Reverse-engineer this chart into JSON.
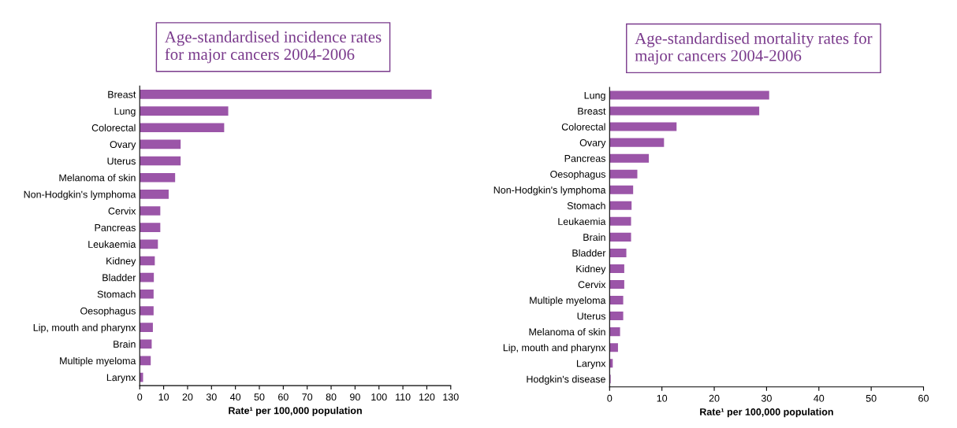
{
  "chart_data": [
    {
      "type": "bar",
      "orientation": "horizontal",
      "title": "Age-standardised incidence rates\nfor major cancers 2004-2006",
      "xlabel": "Rate¹ per 100,000 population",
      "categories": [
        "Breast",
        "Lung",
        "Colorectal",
        "Ovary",
        "Uterus",
        "Melanoma of skin",
        "Non-Hodgkin's lymphoma",
        "Cervix",
        "Pancreas",
        "Leukaemia",
        "Kidney",
        "Bladder",
        "Stomach",
        "Oesophagus",
        "Lip, mouth and pharynx",
        "Brain",
        "Multiple myeloma",
        "Larynx"
      ],
      "values": [
        122,
        37,
        35.3,
        17.1,
        17.1,
        14.8,
        12.1,
        8.6,
        8.6,
        7.6,
        6.3,
        5.9,
        5.8,
        5.8,
        5.5,
        5.0,
        4.6,
        1.4
      ],
      "color": "#9b55a8",
      "xlim": [
        0,
        130
      ],
      "xticks": [
        0,
        10,
        20,
        30,
        40,
        50,
        60,
        70,
        80,
        90,
        100,
        110,
        120,
        130
      ],
      "grid": false,
      "legend": false
    },
    {
      "type": "bar",
      "orientation": "horizontal",
      "title": "Age-standardised mortality rates for\nmajor cancers 2004-2006",
      "xlabel": "Rate¹ per 100,000 population",
      "categories": [
        "Lung",
        "Breast",
        "Colorectal",
        "Ovary",
        "Pancreas",
        "Oesophagus",
        "Non-Hodgkin's lymphoma",
        "Stomach",
        "Leukaemia",
        "Brain",
        "Bladder",
        "Kidney",
        "Cervix",
        "Multiple myeloma",
        "Uterus",
        "Melanoma of skin",
        "Lip, mouth and pharynx",
        "Larynx",
        "Hodgkin's disease"
      ],
      "values": [
        30.5,
        28.6,
        12.8,
        10.4,
        7.5,
        5.3,
        4.5,
        4.2,
        4.1,
        4.1,
        3.2,
        2.8,
        2.8,
        2.6,
        2.6,
        2.0,
        1.6,
        0.6,
        0.2
      ],
      "color": "#9b55a8",
      "xlim": [
        0,
        60
      ],
      "xticks": [
        0,
        10,
        20,
        30,
        40,
        50,
        60
      ],
      "grid": false,
      "legend": false
    }
  ]
}
